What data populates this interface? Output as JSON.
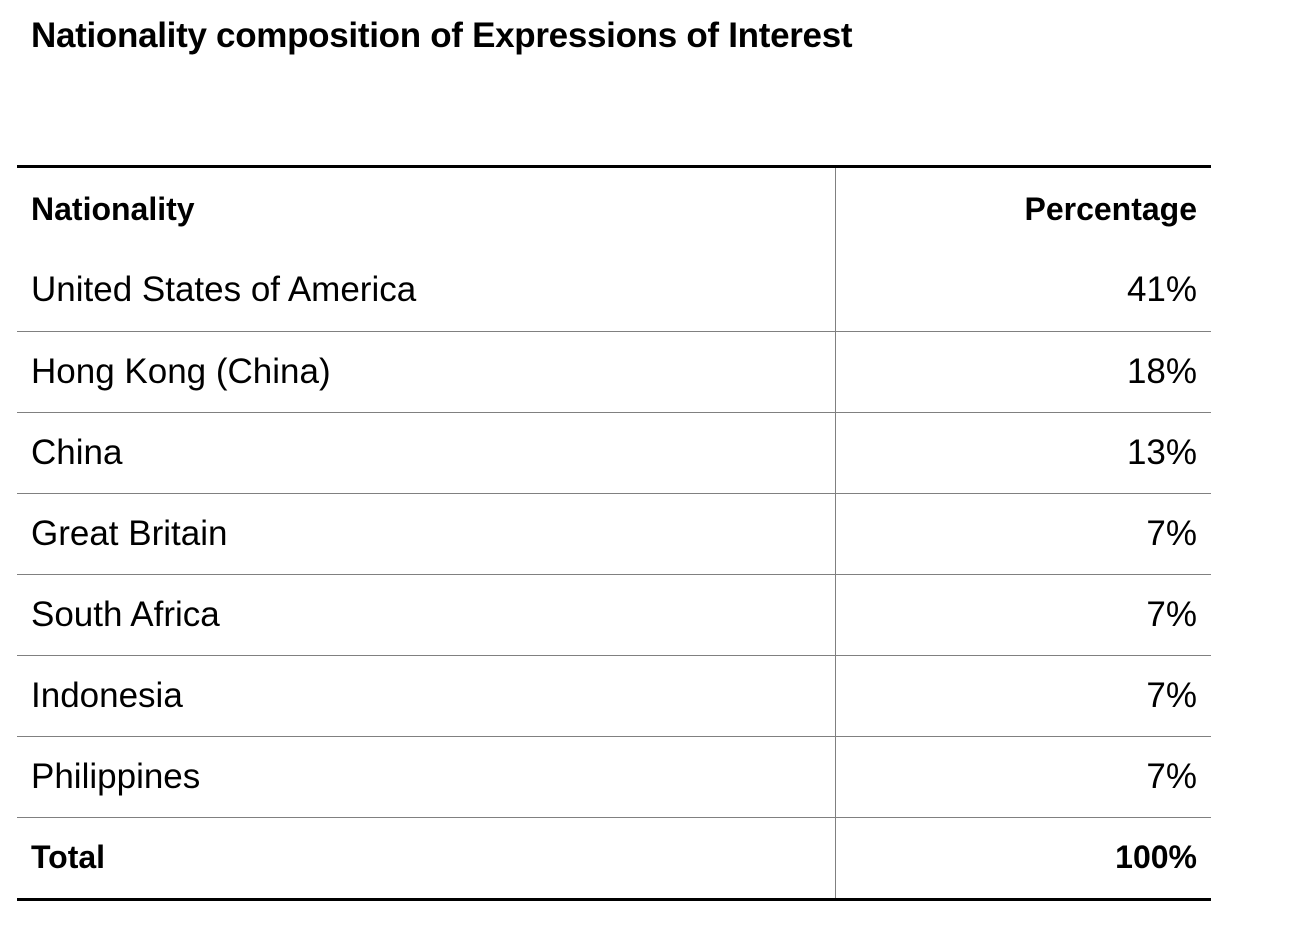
{
  "title": "Nationality composition of Expressions of Interest",
  "table": {
    "headers": {
      "nationality": "Nationality",
      "percentage": "Percentage"
    },
    "rows": [
      {
        "nationality": "United States of America",
        "percentage": "41%"
      },
      {
        "nationality": "Hong Kong (China)",
        "percentage": "18%"
      },
      {
        "nationality": "China",
        "percentage": "13%"
      },
      {
        "nationality": "Great Britain",
        "percentage": "7%"
      },
      {
        "nationality": "South Africa",
        "percentage": "7%"
      },
      {
        "nationality": "Indonesia",
        "percentage": "7%"
      },
      {
        "nationality": "Philippines",
        "percentage": "7%"
      }
    ],
    "total": {
      "nationality": "Total",
      "percentage": "100%"
    }
  }
}
